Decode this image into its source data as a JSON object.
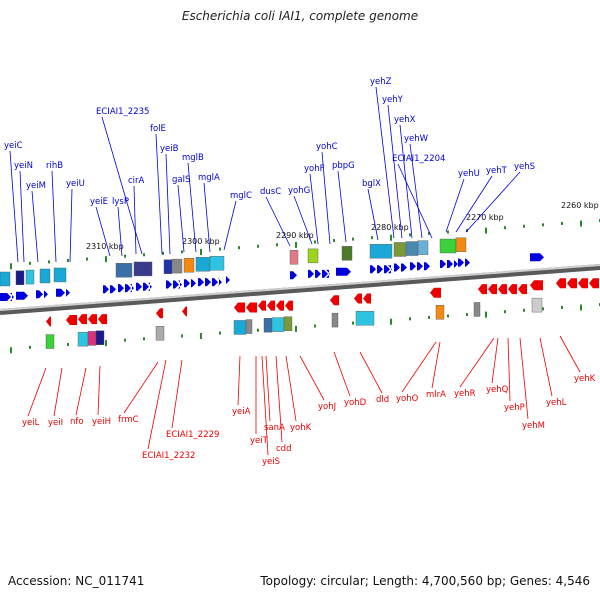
{
  "header": {
    "title": "Escherichia coli IAI1, complete genome"
  },
  "footer": {
    "accession": "Accession: NC_011741",
    "summary": "Topology: circular; Length: 4,700,560 bp; Genes: 4,546"
  },
  "colors": {
    "forward_strand": "#0000dd",
    "reverse_strand": "#ee0000",
    "backbone": "#888888"
  },
  "scale_ticks": [
    "2310 kbp",
    "2300 kbp",
    "2290 kbp",
    "2280 kbp",
    "2270 kbp",
    "2260 kbp"
  ],
  "forward_genes": [
    "yeiC",
    "yeiN",
    "yeiM",
    "rihB",
    "yeiU",
    "yeiE",
    "lysP",
    "ECIAI1_2235",
    "cirA",
    "folE",
    "yeiB",
    "galS",
    "mglB",
    "mglA",
    "mglC",
    "dusC",
    "yohG",
    "yohF",
    "yohC",
    "pbpG",
    "bglX",
    "yehZ",
    "yehY",
    "yehX",
    "yehW",
    "ECIAI1_2204",
    "yehU",
    "yehT",
    "yehS"
  ],
  "reverse_genes": [
    "yeiL",
    "yeiI",
    "nfo",
    "yeiH",
    "frmC",
    "ECIAI1_2232",
    "ECIAI1_2229",
    "yeiA",
    "yeiT",
    "yeiS",
    "sanA",
    "cdd",
    "yohK",
    "yohJ",
    "yohD",
    "dld",
    "yohO",
    "mlrA",
    "yehR",
    "yehQ",
    "yehP",
    "yehM",
    "yehL",
    "yehK"
  ]
}
